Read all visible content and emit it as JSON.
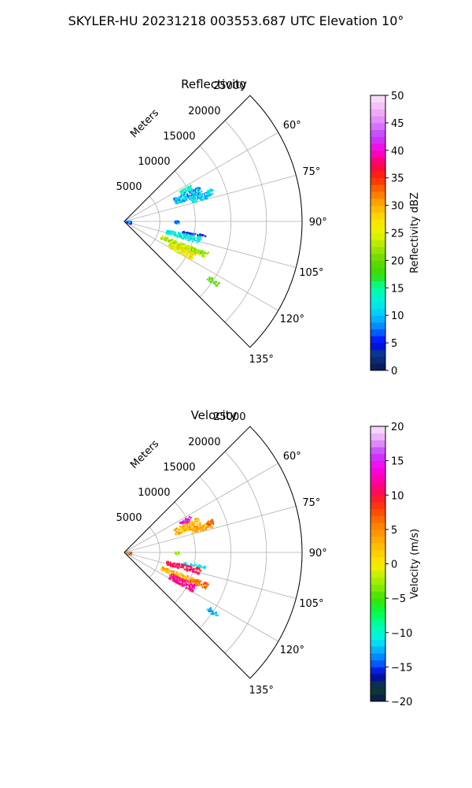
{
  "figure": {
    "suptitle": "SKYLER-HU  20231218  003553.687 UTC Elevation 10°"
  },
  "chart_data": [
    {
      "type": "polar-sector",
      "title": "Reflectivity",
      "range_label": "Meters",
      "range_ticks": [
        5000,
        10000,
        15000,
        20000,
        25000
      ],
      "range_tick_labels": [
        "5000",
        "10000",
        "15000",
        "20000",
        "25000"
      ],
      "rmax": 25000,
      "azimuth_range_deg": [
        45,
        135
      ],
      "azimuth_ticks_deg": [
        60,
        75,
        90,
        105,
        120,
        135
      ],
      "azimuth_tick_labels": [
        "60°",
        "75°",
        "90°",
        "105°",
        "120°",
        "135°"
      ],
      "grid": true,
      "colorbar": {
        "label": "Reflectivity dBZ",
        "vmin": 0,
        "vmax": 50,
        "ticks": [
          0,
          5,
          10,
          15,
          20,
          25,
          30,
          35,
          40,
          45,
          50
        ],
        "tick_labels": [
          "0",
          "5",
          "10",
          "15",
          "20",
          "25",
          "30",
          "35",
          "40",
          "45",
          "50"
        ],
        "colormap_stops": [
          [
            0,
            "#0b1550"
          ],
          [
            3,
            "#0a3a8a"
          ],
          [
            5,
            "#0000ff"
          ],
          [
            7.5,
            "#0078ff"
          ],
          [
            10,
            "#00c8ff"
          ],
          [
            12.5,
            "#00f0e0"
          ],
          [
            15,
            "#00ffa0"
          ],
          [
            17.5,
            "#33dd00"
          ],
          [
            20,
            "#66d800"
          ],
          [
            22.5,
            "#a8e800"
          ],
          [
            25,
            "#e6f500"
          ],
          [
            27.5,
            "#ffe000"
          ],
          [
            30,
            "#ffb000"
          ],
          [
            32.5,
            "#ff7000"
          ],
          [
            35,
            "#ff2a00"
          ],
          [
            37.5,
            "#ff0055"
          ],
          [
            40,
            "#ff00e0"
          ],
          [
            42.5,
            "#c040ff"
          ],
          [
            45,
            "#e080ff"
          ],
          [
            47.5,
            "#f2b6f2"
          ],
          [
            50,
            "#fbe6fb"
          ]
        ]
      },
      "echo_clusters": [
        {
          "az": [
            60.5,
            64
          ],
          "r": [
            8800,
            10600
          ],
          "v": [
            12,
            16
          ]
        },
        {
          "az": [
            64,
            70.5
          ],
          "r": [
            7600,
            11600
          ],
          "v": [
            6,
            13
          ]
        },
        {
          "az": [
            70,
            74
          ],
          "r": [
            9800,
            12800
          ],
          "v": [
            7,
            15
          ]
        },
        {
          "az": [
            69,
            72
          ],
          "r": [
            12200,
            13200
          ],
          "v": [
            9,
            14
          ]
        },
        {
          "az": [
            88.5,
            91.5
          ],
          "r": [
            7000,
            7600
          ],
          "v": [
            6,
            10
          ]
        },
        {
          "az": [
            99,
            101
          ],
          "r": [
            8200,
            11500
          ],
          "v": [
            3,
            7
          ]
        },
        {
          "az": [
            101,
            106
          ],
          "r": [
            6000,
            11000
          ],
          "v": [
            10,
            15
          ]
        },
        {
          "az": [
            110,
            115
          ],
          "r": [
            5500,
            11500
          ],
          "v": [
            20,
            28
          ]
        },
        {
          "az": [
            114,
            120
          ],
          "r": [
            7000,
            11000
          ],
          "v": [
            22,
            30
          ]
        },
        {
          "az": [
            110,
            114
          ],
          "r": [
            10000,
            12500
          ],
          "v": [
            18,
            25
          ]
        },
        {
          "az": [
            122.5,
            125
          ],
          "r": [
            14000,
            15800
          ],
          "v": [
            17,
            21
          ]
        },
        {
          "az": [
            83,
            107
          ],
          "r": [
            200,
            900
          ],
          "v": [
            4,
            10
          ]
        }
      ]
    },
    {
      "type": "polar-sector",
      "title": "Velocity",
      "range_label": "Meters",
      "range_ticks": [
        5000,
        10000,
        15000,
        20000,
        25000
      ],
      "range_tick_labels": [
        "5000",
        "10000",
        "15000",
        "20000",
        "25000"
      ],
      "rmax": 25000,
      "azimuth_range_deg": [
        45,
        135
      ],
      "azimuth_ticks_deg": [
        60,
        75,
        90,
        105,
        120,
        135
      ],
      "azimuth_tick_labels": [
        "60°",
        "75°",
        "90°",
        "105°",
        "120°",
        "135°"
      ],
      "grid": true,
      "colorbar": {
        "label": "Velocity (m/s)",
        "vmin": -20,
        "vmax": 20,
        "ticks": [
          -20,
          -15,
          -10,
          -5,
          0,
          5,
          10,
          15,
          20
        ],
        "tick_labels": [
          "−20",
          "−15",
          "−10",
          "−5",
          "0",
          "5",
          "10",
          "15",
          "20"
        ],
        "colormap_stops": [
          [
            -20,
            "#0b1550"
          ],
          [
            -18,
            "#0d4030"
          ],
          [
            -16,
            "#0000c0"
          ],
          [
            -15,
            "#0040ff"
          ],
          [
            -13,
            "#00a0ff"
          ],
          [
            -11,
            "#00f0f0"
          ],
          [
            -9,
            "#00ffaa"
          ],
          [
            -7,
            "#00ff40"
          ],
          [
            -5,
            "#40e000"
          ],
          [
            -3,
            "#90ee00"
          ],
          [
            -1,
            "#dcf000"
          ],
          [
            0,
            "#ffe800"
          ],
          [
            2,
            "#ffc800"
          ],
          [
            4,
            "#ffa000"
          ],
          [
            6,
            "#ff7800"
          ],
          [
            8,
            "#ff4000"
          ],
          [
            10,
            "#ff1040"
          ],
          [
            12,
            "#ff00a0"
          ],
          [
            14,
            "#ff00f0"
          ],
          [
            16,
            "#c040ff"
          ],
          [
            18,
            "#e8a0f8"
          ],
          [
            20,
            "#fbe6fb"
          ]
        ]
      },
      "echo_clusters": [
        {
          "az": [
            60.5,
            64
          ],
          "r": [
            8800,
            10600
          ],
          "v": [
            12,
            17
          ]
        },
        {
          "az": [
            64,
            70.5
          ],
          "r": [
            7600,
            11600
          ],
          "v": [
            0,
            6
          ]
        },
        {
          "az": [
            70,
            74
          ],
          "r": [
            9800,
            12800
          ],
          "v": [
            1,
            6
          ]
        },
        {
          "az": [
            69,
            72
          ],
          "r": [
            12200,
            13200
          ],
          "v": [
            5,
            9
          ]
        },
        {
          "az": [
            88.5,
            91.5
          ],
          "r": [
            7000,
            7600
          ],
          "v": [
            -4,
            0
          ]
        },
        {
          "az": [
            99,
            101
          ],
          "r": [
            8200,
            11500
          ],
          "v": [
            -12,
            -10
          ]
        },
        {
          "az": [
            101,
            106
          ],
          "r": [
            6000,
            11000
          ],
          "v": [
            8,
            13
          ]
        },
        {
          "az": [
            110,
            115
          ],
          "r": [
            5500,
            11500
          ],
          "v": [
            0,
            6
          ]
        },
        {
          "az": [
            114,
            120
          ],
          "r": [
            7000,
            11000
          ],
          "v": [
            9,
            14
          ]
        },
        {
          "az": [
            110,
            114
          ],
          "r": [
            10000,
            12500
          ],
          "v": [
            4,
            9
          ]
        },
        {
          "az": [
            122.5,
            125
          ],
          "r": [
            14000,
            15800
          ],
          "v": [
            -14,
            -11
          ]
        },
        {
          "az": [
            83,
            107
          ],
          "r": [
            200,
            900
          ],
          "v": [
            -8,
            14
          ]
        }
      ]
    }
  ]
}
